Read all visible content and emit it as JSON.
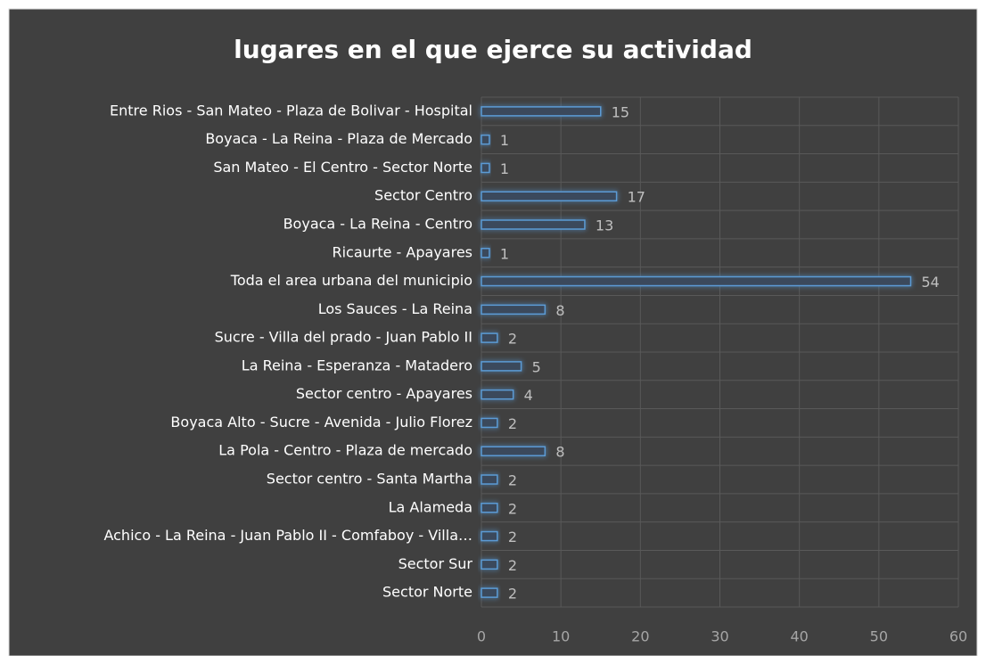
{
  "chart_data": {
    "type": "bar",
    "orientation": "horizontal",
    "title": "lugares en el que ejerce su actividad",
    "categories": [
      "Entre Rios - San Mateo - Plaza de Bolivar - Hospital",
      "Boyaca - La Reina - Plaza de Mercado",
      "San Mateo - El Centro - Sector Norte",
      "Sector Centro",
      "Boyaca - La Reina - Centro",
      "Ricaurte - Apayares",
      "Toda el area urbana del municipio",
      "Los Sauces - La Reina",
      "Sucre - Villa del prado - Juan Pablo II",
      "La Reina - Esperanza - Matadero",
      "Sector centro - Apayares",
      "Boyaca Alto - Sucre - Avenida - Julio Florez",
      "La Pola - Centro - Plaza de mercado",
      "Sector centro - Santa Martha",
      "La Alameda",
      "Achico - La Reina - Juan Pablo II - Comfaboy - Villa…",
      "Sector Sur",
      "Sector Norte"
    ],
    "values": [
      15,
      1,
      1,
      17,
      13,
      1,
      54,
      8,
      2,
      5,
      4,
      2,
      8,
      2,
      2,
      2,
      2,
      2
    ],
    "color": "#5b9bd5",
    "xlim": [
      0,
      60
    ],
    "xticks": [
      0,
      10,
      20,
      30,
      40,
      50,
      60
    ],
    "grid": true
  }
}
